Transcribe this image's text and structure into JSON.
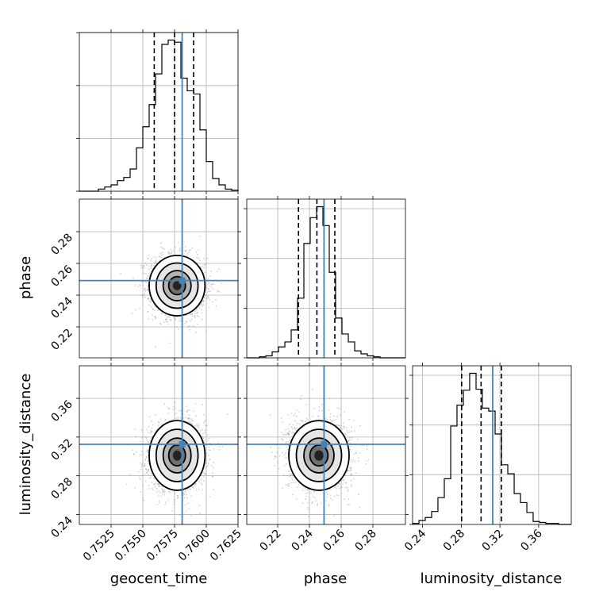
{
  "chart_data": {
    "type": "corner",
    "parameters": [
      "geocent_time",
      "phase",
      "luminosity_distance"
    ],
    "truths": {
      "geocent_time": 0.7581,
      "phase": 0.2492,
      "luminosity_distance": 0.3125
    },
    "quantiles": {
      "geocent_time": [
        0.7559,
        0.7575,
        0.759
      ],
      "phase": [
        0.2331,
        0.2447,
        0.256
      ],
      "luminosity_distance": [
        0.2804,
        0.3005,
        0.3215
      ]
    },
    "axes": {
      "geocent_time": {
        "lim": [
          0.75,
          0.7625
        ],
        "ticks": [
          "0.7525",
          "0.7550",
          "0.7575",
          "0.7600",
          "0.7625"
        ],
        "tick_values": [
          0.7525,
          0.755,
          0.7575,
          0.76,
          0.7625
        ]
      },
      "phase": {
        "lim": [
          0.2005,
          0.3005
        ],
        "ticks": [
          "0.22",
          "0.24",
          "0.26",
          "0.28"
        ],
        "tick_values": [
          0.22,
          0.24,
          0.26,
          0.28
        ]
      },
      "luminosity_distance": {
        "lim": [
          0.2297,
          0.3937
        ],
        "ticks": [
          "0.24",
          "0.28",
          "0.32",
          "0.36"
        ],
        "tick_values": [
          0.24,
          0.28,
          0.32,
          0.36
        ]
      }
    },
    "histograms": {
      "geocent_time": {
        "bins": [
          0.75,
          0.7505,
          0.751,
          0.7515,
          0.752,
          0.7525,
          0.753,
          0.7535,
          0.754,
          0.7545,
          0.755,
          0.7555,
          0.756,
          0.7565,
          0.757,
          0.7575,
          0.758,
          0.7585,
          0.759,
          0.7595,
          0.76,
          0.7605,
          0.761,
          0.7615,
          0.762,
          0.7625
        ],
        "counts": [
          0,
          0,
          0,
          2,
          4,
          6,
          10,
          13,
          21,
          41,
          61,
          82,
          111,
          139,
          143,
          141,
          107,
          95,
          92,
          58,
          28,
          12,
          6,
          2,
          1
        ]
      },
      "phase": {
        "bins": [
          0.2005,
          0.2045,
          0.2085,
          0.2125,
          0.2165,
          0.2205,
          0.2245,
          0.2285,
          0.2325,
          0.2365,
          0.2405,
          0.2445,
          0.2485,
          0.2525,
          0.2565,
          0.2605,
          0.2645,
          0.2685,
          0.2725,
          0.2765,
          0.2805,
          0.2845,
          0.2885,
          0.2925,
          0.2965,
          0.3005
        ],
        "counts": [
          0,
          0,
          1,
          2,
          6,
          11,
          16,
          28,
          60,
          115,
          141,
          152,
          133,
          86,
          40,
          24,
          16,
          7,
          4,
          2,
          1,
          0,
          0,
          0,
          0
        ]
      },
      "luminosity_distance": {
        "bins": [
          0.2297,
          0.2363,
          0.2428,
          0.2494,
          0.2559,
          0.2625,
          0.2691,
          0.2756,
          0.2822,
          0.2887,
          0.2953,
          0.3018,
          0.3084,
          0.315,
          0.3215,
          0.3281,
          0.3347,
          0.3412,
          0.3478,
          0.3543,
          0.3609,
          0.3674,
          0.374,
          0.3806,
          0.3871,
          0.3937
        ],
        "counts": [
          1,
          4,
          7,
          13,
          27,
          46,
          99,
          120,
          135,
          152,
          136,
          117,
          114,
          91,
          60,
          51,
          31,
          22,
          12,
          3,
          2,
          1,
          1,
          0,
          0
        ]
      }
    },
    "pairs": [
      {
        "x": "geocent_time",
        "y": "phase",
        "mean": [
          0.7577,
          0.246
        ],
        "sigma": [
          0.0011,
          0.0095
        ],
        "rho": -0.08
      },
      {
        "x": "geocent_time",
        "y": "luminosity_distance",
        "mean": [
          0.7577,
          0.301
        ],
        "sigma": [
          0.0011,
          0.018
        ],
        "rho": 0.05
      },
      {
        "x": "phase",
        "y": "luminosity_distance",
        "mean": [
          0.246,
          0.301
        ],
        "sigma": [
          0.0095,
          0.018
        ],
        "rho": -0.05
      }
    ],
    "colors": {
      "truth": "#4682b4",
      "hist": "#000000",
      "scatter": "#7f7f7f",
      "grid": "#b0b0b0"
    }
  }
}
